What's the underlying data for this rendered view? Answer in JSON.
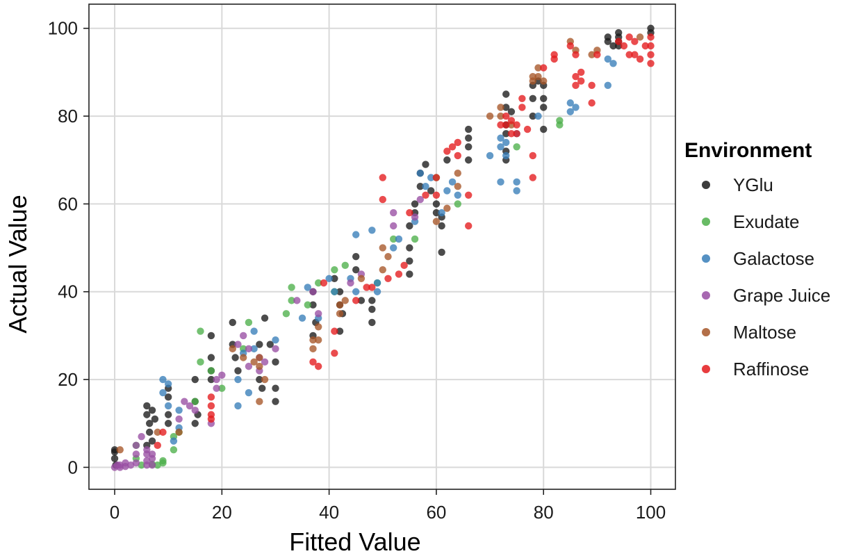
{
  "chart_data": {
    "type": "scatter",
    "xlabel": "Fitted Value",
    "ylabel": "Actual Value",
    "xlim": [
      -4.8,
      104.6
    ],
    "ylim": [
      -5,
      105.5
    ],
    "xticks": [
      0,
      20,
      40,
      60,
      80,
      100
    ],
    "yticks": [
      0,
      20,
      40,
      60,
      80,
      100
    ],
    "grid": true,
    "legend": {
      "title": "Environment",
      "placement": "right"
    },
    "series": [
      {
        "name": "YGlu",
        "color": "#1a1a1a",
        "points": [
          [
            0,
            4
          ],
          [
            0,
            2
          ],
          [
            0.2,
            0.5
          ],
          [
            0,
            3.5
          ],
          [
            6,
            14
          ],
          [
            6,
            12
          ],
          [
            6.5,
            10
          ],
          [
            6.5,
            8
          ],
          [
            7,
            6
          ],
          [
            6,
            5
          ],
          [
            7,
            13
          ],
          [
            7.5,
            11
          ],
          [
            10,
            18
          ],
          [
            10,
            16
          ],
          [
            10,
            12
          ],
          [
            10,
            10
          ],
          [
            15,
            20
          ],
          [
            15,
            15
          ],
          [
            15.5,
            12
          ],
          [
            15,
            10
          ],
          [
            18,
            30
          ],
          [
            18,
            25
          ],
          [
            18,
            22
          ],
          [
            18,
            20
          ],
          [
            22,
            33
          ],
          [
            22,
            28
          ],
          [
            22.5,
            25
          ],
          [
            23,
            22
          ],
          [
            27,
            28
          ],
          [
            27,
            20
          ],
          [
            27.5,
            18
          ],
          [
            28,
            34
          ],
          [
            29,
            28
          ],
          [
            30,
            24
          ],
          [
            30,
            18
          ],
          [
            30,
            15
          ],
          [
            37,
            40
          ],
          [
            37,
            37
          ],
          [
            37.5,
            33
          ],
          [
            37,
            30
          ],
          [
            41,
            43
          ],
          [
            42,
            40
          ],
          [
            42,
            37
          ],
          [
            42.5,
            35
          ],
          [
            42,
            31
          ],
          [
            45,
            48
          ],
          [
            45,
            45
          ],
          [
            46,
            38
          ],
          [
            48,
            38
          ],
          [
            48,
            36
          ],
          [
            48,
            33
          ],
          [
            55,
            55
          ],
          [
            55,
            50
          ],
          [
            55,
            47
          ],
          [
            55,
            44
          ],
          [
            56,
            58
          ],
          [
            56,
            60
          ],
          [
            57,
            64
          ],
          [
            57,
            67
          ],
          [
            58,
            69
          ],
          [
            59,
            63
          ],
          [
            60,
            60
          ],
          [
            60,
            58
          ],
          [
            61,
            57
          ],
          [
            61,
            55
          ],
          [
            61,
            49
          ],
          [
            62,
            70
          ],
          [
            66,
            77
          ],
          [
            66,
            75
          ],
          [
            66,
            73
          ],
          [
            66,
            70
          ],
          [
            73,
            85
          ],
          [
            73,
            82
          ],
          [
            73,
            78
          ],
          [
            73,
            76
          ],
          [
            73,
            72
          ],
          [
            73,
            70
          ],
          [
            74,
            81
          ],
          [
            78,
            87
          ],
          [
            78,
            84
          ],
          [
            78,
            80
          ],
          [
            79,
            88
          ],
          [
            80,
            87
          ],
          [
            80,
            84
          ],
          [
            80,
            82
          ],
          [
            80,
            77
          ],
          [
            92,
            98
          ],
          [
            92,
            97
          ],
          [
            93,
            96
          ],
          [
            94,
            99
          ],
          [
            94,
            98
          ],
          [
            94,
            97
          ],
          [
            94,
            96
          ],
          [
            100,
            100
          ],
          [
            100,
            99
          ]
        ]
      },
      {
        "name": "Exudate",
        "color": "#4daf4a",
        "points": [
          [
            4,
            5
          ],
          [
            4,
            2
          ],
          [
            5,
            0.5
          ],
          [
            7,
            0.7
          ],
          [
            8,
            0.5
          ],
          [
            9,
            1
          ],
          [
            9,
            1.5
          ],
          [
            11,
            4
          ],
          [
            11,
            7
          ],
          [
            12,
            8
          ],
          [
            15,
            15
          ],
          [
            16,
            24
          ],
          [
            16,
            31
          ],
          [
            18,
            22
          ],
          [
            20,
            18
          ],
          [
            24,
            27
          ],
          [
            25,
            33
          ],
          [
            32,
            35
          ],
          [
            33,
            38
          ],
          [
            33,
            41
          ],
          [
            36,
            37
          ],
          [
            38,
            42
          ],
          [
            41,
            40
          ],
          [
            41,
            45
          ],
          [
            43,
            46
          ],
          [
            49,
            42
          ],
          [
            52,
            52
          ],
          [
            56,
            52
          ],
          [
            60,
            66
          ],
          [
            64,
            60
          ],
          [
            75,
            73
          ],
          [
            83,
            79
          ],
          [
            83,
            78
          ]
        ]
      },
      {
        "name": "Galactose",
        "color": "#377eb8",
        "points": [
          [
            9,
            20
          ],
          [
            9,
            17
          ],
          [
            10,
            14
          ],
          [
            10,
            19
          ],
          [
            11,
            6
          ],
          [
            12,
            13
          ],
          [
            12,
            9
          ],
          [
            23,
            14
          ],
          [
            23,
            20
          ],
          [
            24,
            26
          ],
          [
            25,
            17
          ],
          [
            26,
            31
          ],
          [
            26,
            27
          ],
          [
            30,
            29
          ],
          [
            35,
            34
          ],
          [
            36,
            41
          ],
          [
            38,
            34
          ],
          [
            40,
            43
          ],
          [
            41,
            40
          ],
          [
            44,
            43
          ],
          [
            45,
            40
          ],
          [
            45,
            53
          ],
          [
            48,
            54
          ],
          [
            49,
            42
          ],
          [
            49,
            40
          ],
          [
            52,
            50
          ],
          [
            53,
            52
          ],
          [
            56,
            56
          ],
          [
            57,
            67
          ],
          [
            58,
            64
          ],
          [
            59,
            66
          ],
          [
            61,
            58
          ],
          [
            62,
            63
          ],
          [
            63,
            65
          ],
          [
            64,
            62
          ],
          [
            70,
            71
          ],
          [
            72,
            75
          ],
          [
            72,
            73
          ],
          [
            72,
            65
          ],
          [
            73,
            74
          ],
          [
            73,
            71
          ],
          [
            75,
            65
          ],
          [
            75,
            63
          ],
          [
            75,
            76
          ],
          [
            79,
            80
          ],
          [
            85,
            83
          ],
          [
            85,
            81
          ],
          [
            86,
            82
          ],
          [
            92,
            93
          ],
          [
            92,
            87
          ],
          [
            93,
            92
          ]
        ]
      },
      {
        "name": "Grape Juice",
        "color": "#984ea3",
        "points": [
          [
            0,
            0
          ],
          [
            0.5,
            0.5
          ],
          [
            1,
            0
          ],
          [
            1,
            0.5
          ],
          [
            2,
            0.2
          ],
          [
            2,
            1
          ],
          [
            3,
            0.5
          ],
          [
            4,
            1
          ],
          [
            4,
            3
          ],
          [
            4,
            5
          ],
          [
            5,
            7
          ],
          [
            6,
            0.5
          ],
          [
            6,
            1.5
          ],
          [
            6,
            3
          ],
          [
            6,
            4
          ],
          [
            7,
            2
          ],
          [
            7,
            3
          ],
          [
            7,
            0.5
          ],
          [
            12,
            11
          ],
          [
            13,
            15
          ],
          [
            14,
            14
          ],
          [
            15,
            13
          ],
          [
            18,
            10
          ],
          [
            19,
            18
          ],
          [
            19,
            20
          ],
          [
            20,
            21
          ],
          [
            23,
            28
          ],
          [
            24,
            30
          ],
          [
            25,
            27
          ],
          [
            25,
            23
          ],
          [
            27,
            25
          ],
          [
            27,
            22
          ],
          [
            28,
            24
          ],
          [
            30,
            27
          ],
          [
            34,
            38
          ],
          [
            37,
            40
          ],
          [
            38,
            35
          ],
          [
            44,
            42
          ],
          [
            46,
            44
          ],
          [
            52,
            55
          ],
          [
            52,
            58
          ],
          [
            56,
            57
          ],
          [
            57,
            61
          ]
        ]
      },
      {
        "name": "Maltose",
        "color": "#a65628",
        "points": [
          [
            1,
            4
          ],
          [
            8,
            8
          ],
          [
            12,
            8
          ],
          [
            22,
            27
          ],
          [
            24,
            25
          ],
          [
            26,
            24
          ],
          [
            27,
            25
          ],
          [
            27,
            23
          ],
          [
            27,
            15
          ],
          [
            28,
            20
          ],
          [
            37,
            29
          ],
          [
            37,
            27
          ],
          [
            38,
            32
          ],
          [
            38,
            29
          ],
          [
            42,
            37
          ],
          [
            42,
            35
          ],
          [
            43,
            38
          ],
          [
            46,
            43
          ],
          [
            50,
            50
          ],
          [
            50,
            45
          ],
          [
            51,
            48
          ],
          [
            60,
            56
          ],
          [
            62,
            59
          ],
          [
            64,
            67
          ],
          [
            64,
            64
          ],
          [
            70,
            80
          ],
          [
            72,
            82
          ],
          [
            72,
            80
          ],
          [
            74,
            78
          ],
          [
            78,
            89
          ],
          [
            78,
            88
          ],
          [
            79,
            89
          ],
          [
            79,
            91
          ],
          [
            80,
            88
          ],
          [
            85,
            97
          ],
          [
            86,
            95
          ],
          [
            89,
            94
          ],
          [
            90,
            95
          ],
          [
            98,
            98
          ]
        ]
      },
      {
        "name": "Raffinose",
        "color": "#e41a1c",
        "points": [
          [
            8,
            5
          ],
          [
            9,
            8
          ],
          [
            18,
            12
          ],
          [
            18,
            11
          ],
          [
            18,
            16
          ],
          [
            18,
            14
          ],
          [
            37,
            24
          ],
          [
            38,
            23
          ],
          [
            39,
            42
          ],
          [
            41,
            26
          ],
          [
            41,
            31
          ],
          [
            45,
            38
          ],
          [
            47,
            41
          ],
          [
            48,
            41
          ],
          [
            50,
            66
          ],
          [
            50,
            61
          ],
          [
            51,
            43
          ],
          [
            53,
            44
          ],
          [
            54,
            46
          ],
          [
            55,
            58
          ],
          [
            58,
            62
          ],
          [
            60,
            62
          ],
          [
            60,
            66
          ],
          [
            62,
            72
          ],
          [
            63,
            73
          ],
          [
            64,
            74
          ],
          [
            64,
            71
          ],
          [
            66,
            62
          ],
          [
            66,
            55
          ],
          [
            72,
            78
          ],
          [
            73,
            78
          ],
          [
            73,
            80
          ],
          [
            74,
            79
          ],
          [
            74,
            76
          ],
          [
            75,
            76
          ],
          [
            75,
            78
          ],
          [
            76,
            82
          ],
          [
            76,
            84
          ],
          [
            77,
            77
          ],
          [
            78,
            71
          ],
          [
            78,
            66
          ],
          [
            80,
            91
          ],
          [
            82,
            93
          ],
          [
            82,
            94
          ],
          [
            85,
            96
          ],
          [
            86,
            94
          ],
          [
            86,
            89
          ],
          [
            86,
            87
          ],
          [
            87,
            88
          ],
          [
            87,
            90
          ],
          [
            89,
            83
          ],
          [
            89,
            87
          ],
          [
            90,
            94
          ],
          [
            94,
            97
          ],
          [
            95,
            96
          ],
          [
            96,
            98
          ],
          [
            96,
            94
          ],
          [
            97,
            97
          ],
          [
            97,
            94
          ],
          [
            98,
            93
          ],
          [
            99,
            96
          ],
          [
            100,
            98
          ],
          [
            100,
            96
          ],
          [
            100,
            94
          ],
          [
            100,
            92
          ]
        ]
      }
    ]
  }
}
